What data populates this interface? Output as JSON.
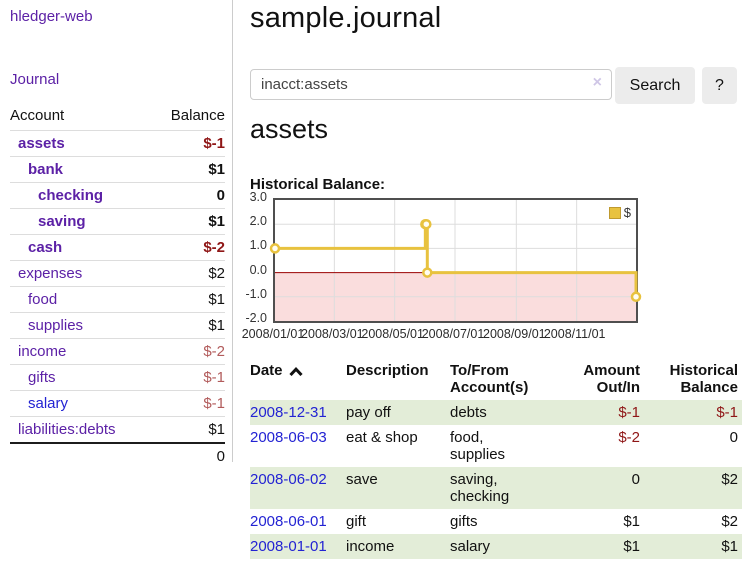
{
  "app": {
    "brand": "hledger-web"
  },
  "nav": {
    "journal": "Journal"
  },
  "sidebar": {
    "header": {
      "account": "Account",
      "balance": "Balance"
    },
    "accounts": [
      {
        "name": "assets",
        "indent": 0,
        "bold": true,
        "balance": "$-1",
        "neg": "strong",
        "color": "purple"
      },
      {
        "name": "bank",
        "indent": 1,
        "bold": true,
        "balance": "$1",
        "neg": "none",
        "color": "purple"
      },
      {
        "name": "checking",
        "indent": 2,
        "bold": true,
        "balance": "0",
        "neg": "none",
        "color": "purple"
      },
      {
        "name": "saving",
        "indent": 2,
        "bold": true,
        "balance": "$1",
        "neg": "none",
        "color": "purple"
      },
      {
        "name": "cash",
        "indent": 1,
        "bold": true,
        "balance": "$-2",
        "neg": "strong",
        "color": "purple"
      },
      {
        "name": "expenses",
        "indent": 0,
        "bold": false,
        "balance": "$2",
        "neg": "none",
        "color": "purple"
      },
      {
        "name": "food",
        "indent": 1,
        "bold": false,
        "balance": "$1",
        "neg": "none",
        "color": "purple"
      },
      {
        "name": "supplies",
        "indent": 1,
        "bold": false,
        "balance": "$1",
        "neg": "none",
        "color": "purple"
      },
      {
        "name": "income",
        "indent": 0,
        "bold": false,
        "balance": "$-2",
        "neg": "soft",
        "color": "purple"
      },
      {
        "name": "gifts",
        "indent": 1,
        "bold": false,
        "balance": "$-1",
        "neg": "soft",
        "color": "purple"
      },
      {
        "name": "salary",
        "indent": 1,
        "bold": false,
        "balance": "$-1",
        "neg": "soft",
        "color": "blue"
      },
      {
        "name": "liabilities:debts",
        "indent": 0,
        "bold": false,
        "balance": "$1",
        "neg": "none",
        "color": "purple"
      }
    ],
    "total": "0"
  },
  "page": {
    "title": "sample.journal",
    "account_heading": "assets",
    "chart_heading": "Historical Balance:"
  },
  "search": {
    "value": "inacct:assets",
    "clear_label": "×",
    "search_button": "Search",
    "help_button": "?"
  },
  "chart_data": {
    "type": "line",
    "step": "left",
    "title": "Historical Balance:",
    "legend": "$",
    "x_range": [
      "2008-01-01",
      "2008-12-31"
    ],
    "ylim": [
      -2.0,
      3.0
    ],
    "yticks": [
      3.0,
      2.0,
      1.0,
      0.0,
      -1.0,
      -2.0
    ],
    "xticks": [
      "2008/01/01",
      "2008/03/01",
      "2008/05/01",
      "2008/07/01",
      "2008/09/01",
      "2008/11/01"
    ],
    "series": [
      {
        "name": "$",
        "points": [
          {
            "date": "2008-01-01",
            "value": 1.0
          },
          {
            "date": "2008-06-01",
            "value": 2.0
          },
          {
            "date": "2008-06-02",
            "value": 2.0
          },
          {
            "date": "2008-06-03",
            "value": 0.0
          },
          {
            "date": "2008-12-31",
            "value": -1.0
          }
        ]
      }
    ]
  },
  "register": {
    "columns": [
      {
        "label": "Date",
        "align": "left",
        "sorted": "asc"
      },
      {
        "label": "Description",
        "align": "left"
      },
      {
        "label": "To/From Account(s)",
        "align": "left"
      },
      {
        "label": "Amount Out/In",
        "align": "right"
      },
      {
        "label": "Historical Balance",
        "align": "right"
      }
    ],
    "rows": [
      {
        "date": "2008-12-31",
        "description": "pay off",
        "accounts": "debts",
        "amount": "$-1",
        "amount_neg": true,
        "balance": "$-1",
        "balance_neg": true,
        "shaded": true
      },
      {
        "date": "2008-06-03",
        "description": "eat & shop",
        "accounts": "food, supplies",
        "amount": "$-2",
        "amount_neg": true,
        "balance": "0",
        "balance_neg": false,
        "shaded": false
      },
      {
        "date": "2008-06-02",
        "description": "save",
        "accounts": "saving, checking",
        "amount": "0",
        "amount_neg": false,
        "balance": "$2",
        "balance_neg": false,
        "shaded": true
      },
      {
        "date": "2008-06-01",
        "description": "gift",
        "accounts": "gifts",
        "amount": "$1",
        "amount_neg": false,
        "balance": "$2",
        "balance_neg": false,
        "shaded": false
      },
      {
        "date": "2008-01-01",
        "description": "income",
        "accounts": "salary",
        "amount": "$1",
        "amount_neg": false,
        "balance": "$1",
        "balance_neg": false,
        "shaded": true
      }
    ]
  },
  "colors": {
    "purple": "#5c21a6",
    "blue": "#2323d3",
    "neg_strong": "#8f1616",
    "neg_soft": "#b25b5b",
    "pos_text": "#111111",
    "row_shade": "#e3edd8",
    "chart_line": "#e8c23f",
    "chart_point_fill": "#fffdf2",
    "chart_neg_fill": "#fadddd",
    "zero_line": "#990000",
    "grid": "#dddddd"
  }
}
